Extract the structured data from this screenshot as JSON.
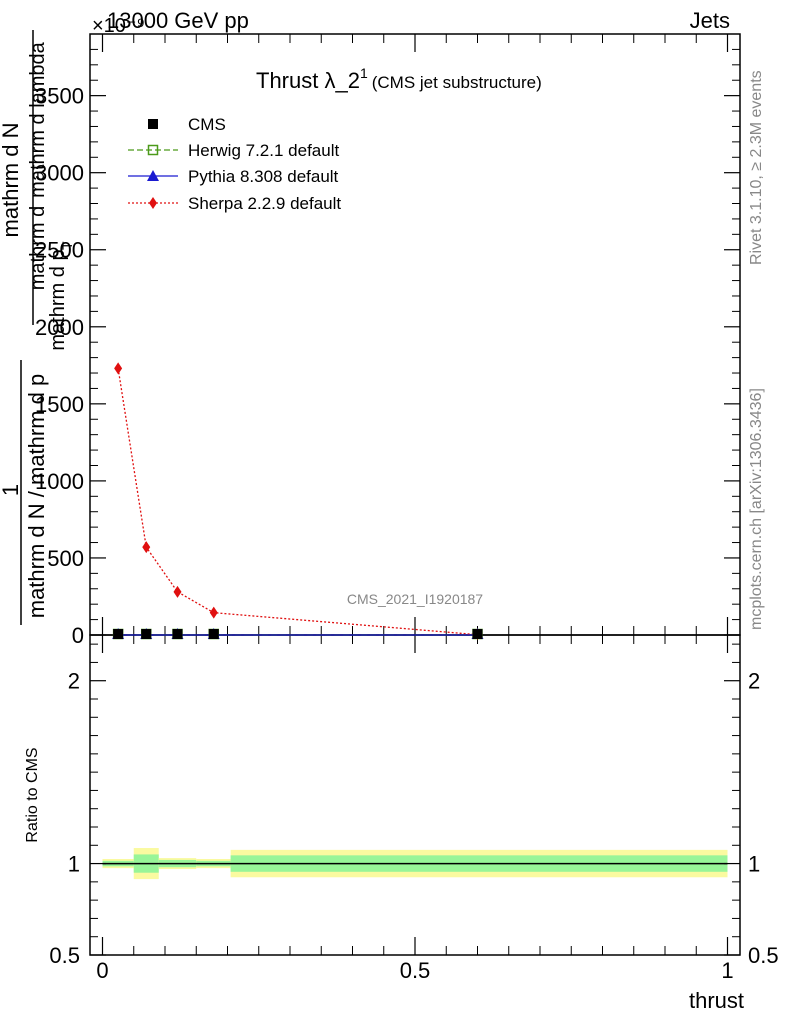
{
  "header": {
    "left": "13000 GeV pp",
    "right": "Jets",
    "multiplier": "×10⁻⁹"
  },
  "side": {
    "rivet": "Rivet 3.1.10, ≥ 2.3M events",
    "mcplots": "mcplots.cern.ch [arXiv:1306.3436]"
  },
  "plot": {
    "title_main": "Thrust λ_2",
    "title_sup": "1",
    "title_sub": "(CMS jet substructure)",
    "watermark": "CMS_2021_I1920187",
    "ylabel_pre": "1",
    "ylabel_num": "mathrm d N",
    "ylabel_den": "mathrm d N / mathrm d p",
    "ylabel_den_sub": "T",
    "ylabel_num2": "mathrm d",
    "ylabel_num2_sup": "2",
    "ylabel_num2_rest": "N",
    "ylabel_den2": "mathrm d p",
    "ylabel_den2_sub": "T",
    "ylabel_den2_rest": "mathrm d lambda",
    "ratio_ylabel": "Ratio to CMS",
    "xlabel": "thrust"
  },
  "colors": {
    "cms": "#000000",
    "herwig": "#4c9a1a",
    "pythia": "#1a1ad0",
    "sherpa": "#e01010",
    "band_inner": "#98f598",
    "band_outer": "#fafaa0"
  },
  "chart_data": {
    "type": "line",
    "main": {
      "xlim": [
        -0.02,
        1.02
      ],
      "ylim": [
        0,
        3900
      ],
      "yticks": [
        0,
        500,
        1000,
        1500,
        2000,
        2500,
        3000,
        3500
      ],
      "ytick_labels": [
        "0",
        "500",
        "1000",
        "1500",
        "2000",
        "2500",
        "3000",
        "3500"
      ],
      "series": [
        {
          "name": "CMS",
          "style": "marker-square",
          "x": [
            0.025,
            0.07,
            0.12,
            0.178,
            0.6
          ],
          "y": [
            0,
            0,
            0,
            0,
            0
          ]
        },
        {
          "name": "Herwig 7.2.1 default",
          "style": "dashed-open-square",
          "x": [
            0.025,
            0.07,
            0.12,
            0.178,
            0.6
          ],
          "y": [
            0,
            0,
            0,
            0,
            0
          ]
        },
        {
          "name": "Pythia 8.308 default",
          "style": "solid-triangle",
          "x": [
            0.025,
            0.07,
            0.12,
            0.178,
            0.6
          ],
          "y": [
            0,
            0,
            0,
            0,
            0
          ]
        },
        {
          "name": "Sherpa 2.2.9 default",
          "style": "dotted-diamond",
          "x": [
            0.025,
            0.07,
            0.12,
            0.178,
            0.6
          ],
          "y": [
            1730,
            570,
            280,
            145,
            2
          ]
        }
      ]
    },
    "ratio": {
      "xlim": [
        -0.02,
        1.02
      ],
      "ylim": [
        0.5,
        2.25
      ],
      "yticks": [
        0.5,
        1,
        2
      ],
      "ytick_labels": [
        "0.5",
        "1",
        "2"
      ],
      "xticks": [
        0,
        0.5,
        1
      ],
      "xtick_labels": [
        "0",
        "0.5",
        "1"
      ],
      "bands": [
        {
          "x0": 0.0,
          "x1": 0.05,
          "inner": [
            0.985,
            1.015
          ],
          "outer": [
            0.975,
            1.025
          ]
        },
        {
          "x0": 0.05,
          "x1": 0.09,
          "inner": [
            0.95,
            1.05
          ],
          "outer": [
            0.915,
            1.085
          ]
        },
        {
          "x0": 0.09,
          "x1": 0.15,
          "inner": [
            0.98,
            1.02
          ],
          "outer": [
            0.97,
            1.03
          ]
        },
        {
          "x0": 0.15,
          "x1": 0.205,
          "inner": [
            0.985,
            1.015
          ],
          "outer": [
            0.975,
            1.025
          ]
        },
        {
          "x0": 0.205,
          "x1": 1.0,
          "inner": [
            0.955,
            1.045
          ],
          "outer": [
            0.925,
            1.075
          ]
        }
      ]
    }
  }
}
